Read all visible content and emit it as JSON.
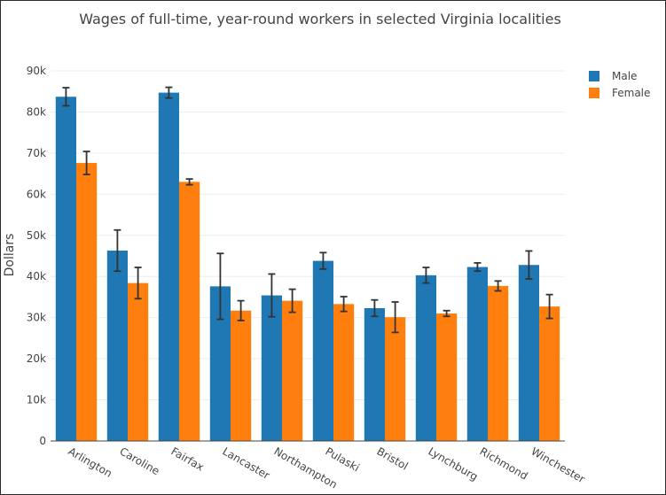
{
  "chart_data": {
    "type": "bar",
    "title": "Wages of full-time, year-round workers in selected Virginia localities",
    "xlabel": "",
    "ylabel": "Dollars",
    "ylim": [
      0,
      90000
    ],
    "yticks": [
      0,
      10000,
      20000,
      30000,
      40000,
      50000,
      60000,
      70000,
      80000,
      90000
    ],
    "ytick_labels": [
      "0",
      "10k",
      "20k",
      "30k",
      "40k",
      "50k",
      "60k",
      "70k",
      "80k",
      "90k"
    ],
    "grid": true,
    "legend_position": "top-right",
    "categories": [
      "Arlington",
      "Caroline",
      "Fairfax",
      "Lancaster",
      "Northampton",
      "Pulaski",
      "Bristol",
      "Lynchburg",
      "Richmond",
      "Winchester"
    ],
    "series": [
      {
        "name": "Male",
        "color": "#1f77b4",
        "values": [
          83700,
          46300,
          84700,
          37600,
          35400,
          43800,
          32300,
          40300,
          42300,
          42800
        ],
        "error_minus": [
          2200,
          5000,
          1300,
          8000,
          5200,
          2000,
          2000,
          1900,
          1000,
          3400
        ],
        "error_plus": [
          2200,
          5000,
          1300,
          8000,
          5200,
          2000,
          2000,
          1900,
          1000,
          3400
        ]
      },
      {
        "name": "Female",
        "color": "#ff7f0e",
        "values": [
          67600,
          38400,
          63000,
          31700,
          34100,
          33300,
          30100,
          31000,
          37700,
          32700
        ],
        "error_minus": [
          2800,
          3800,
          700,
          2400,
          2800,
          1800,
          3700,
          700,
          1200,
          2900
        ],
        "error_plus": [
          2800,
          3800,
          700,
          2400,
          2800,
          1800,
          3700,
          700,
          1200,
          2900
        ]
      }
    ]
  }
}
